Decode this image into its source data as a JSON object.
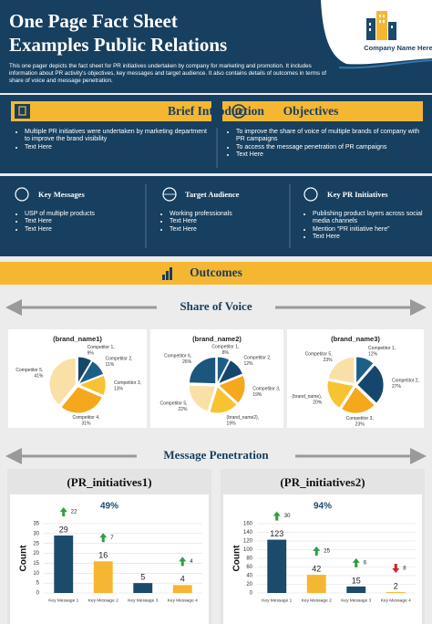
{
  "header": {
    "title_lines": [
      "One Page Fact Sheet",
      "Examples Public Relations"
    ],
    "company": "Company Name Here",
    "description": "This one pager depicts the fact sheet for PR initiatives undertaken by company for marketing and promotion. It includes information about PR activity's objectives, key messages and target audience. It also contains details of outcomes in terms of share of voice and message penetration."
  },
  "intro": {
    "title": "Brief Introduction",
    "items": [
      "Multiple PR initiatives were undertaken by marketing department to improve the brand visibility",
      "Text Here"
    ]
  },
  "objectives": {
    "title": "Objectives",
    "items": [
      "To improve the share of voice of multiple brands of company with PR campaigns",
      "To access the message penetration of PR campaigns",
      "Text Here"
    ]
  },
  "columns": [
    {
      "title": "Key Messages",
      "items": [
        "USP of multiple products",
        "Text Here",
        "Text Here"
      ]
    },
    {
      "title": "Target Audience",
      "items": [
        "Working professionals",
        "Text Here",
        "Text Here"
      ]
    },
    {
      "title": "Key PR Initiatives",
      "items": [
        "Publishing product layers across social media channels",
        "Mention “PR initiative here”",
        "Text Here"
      ]
    }
  ],
  "outcomes": {
    "title": "Outcomes",
    "share_title": "Share of Voice",
    "penetration_title": "Message Penetration"
  },
  "chart_data": [
    {
      "type": "pie",
      "title": "(brand_name1)",
      "categories": [
        "Competitor 1,",
        "Competitor 2,",
        "Competitor 3,",
        "Competitor 4,",
        "Competitor 5,"
      ],
      "values": [
        9,
        11,
        13,
        31,
        41
      ],
      "value_labels": [
        "9%",
        "11%",
        "13%",
        "31%",
        "41%"
      ],
      "colors": [
        "#14476b",
        "#1e5f86",
        "#f7c332",
        "#f5a81c",
        "#f9e0a6"
      ]
    },
    {
      "type": "pie",
      "title": "(brand_name2)",
      "categories": [
        "Competitor 1,",
        "Competitor 2,",
        "Competitor 3,",
        "(brand_name2),",
        "Competitor 5,",
        "Competitor 6,"
      ],
      "values": [
        8,
        12,
        19,
        19,
        22,
        26
      ],
      "value_labels": [
        "8%",
        "12%",
        "19%",
        "19%",
        "22%",
        "26%"
      ],
      "colors": [
        "#1e5f86",
        "#14476b",
        "#f5a81c",
        "#f7c332",
        "#f9e0a6",
        "#1b567c"
      ]
    },
    {
      "type": "pie",
      "title": "(brand_name3)",
      "categories": [
        "Competitor 1,",
        "Competitor 2,",
        "Competitor 3,",
        "(brand_name),",
        "Competitor 5,"
      ],
      "values": [
        12,
        27,
        23,
        20,
        23
      ],
      "value_labels": [
        "12%",
        "27%",
        "23%",
        "20%",
        "23%"
      ],
      "colors": [
        "#1e5f86",
        "#14476b",
        "#f5a81c",
        "#f7c332",
        "#f9e0a6"
      ]
    },
    {
      "type": "bar",
      "title": "(PR_initiatives1)",
      "subtitle": "49%",
      "y_label": "Count",
      "categories": [
        "Key Message 1",
        "Key Message 2",
        "Key Message 3",
        "Key Message 4"
      ],
      "values": [
        29,
        16,
        5,
        4
      ],
      "colors": [
        "#1b4a6b",
        "#f5b731",
        "#1b4a6b",
        "#f5b731"
      ],
      "ylim": [
        0,
        35
      ],
      "yticks": [
        0,
        5,
        10,
        15,
        20,
        25,
        30,
        35
      ],
      "grid": true,
      "change_values": [
        22,
        7,
        null,
        4
      ],
      "change_directions": [
        "up",
        "up",
        null,
        "up"
      ]
    },
    {
      "type": "bar",
      "title": "(PR_initiatives2)",
      "subtitle": "94%",
      "y_label": "Count",
      "categories": [
        "Key Message 1",
        "Key Message 2",
        "Key Message 3",
        "Key Message 4"
      ],
      "values": [
        123,
        42,
        15,
        2
      ],
      "colors": [
        "#1b4a6b",
        "#f5b731",
        "#1b4a6b",
        "#f5b731"
      ],
      "ylim": [
        0,
        160
      ],
      "yticks": [
        0,
        20,
        40,
        60,
        80,
        100,
        120,
        140,
        160
      ],
      "grid": true,
      "change_values": [
        30,
        25,
        6,
        8
      ],
      "change_directions": [
        "up",
        "up",
        "up",
        "down"
      ]
    }
  ]
}
